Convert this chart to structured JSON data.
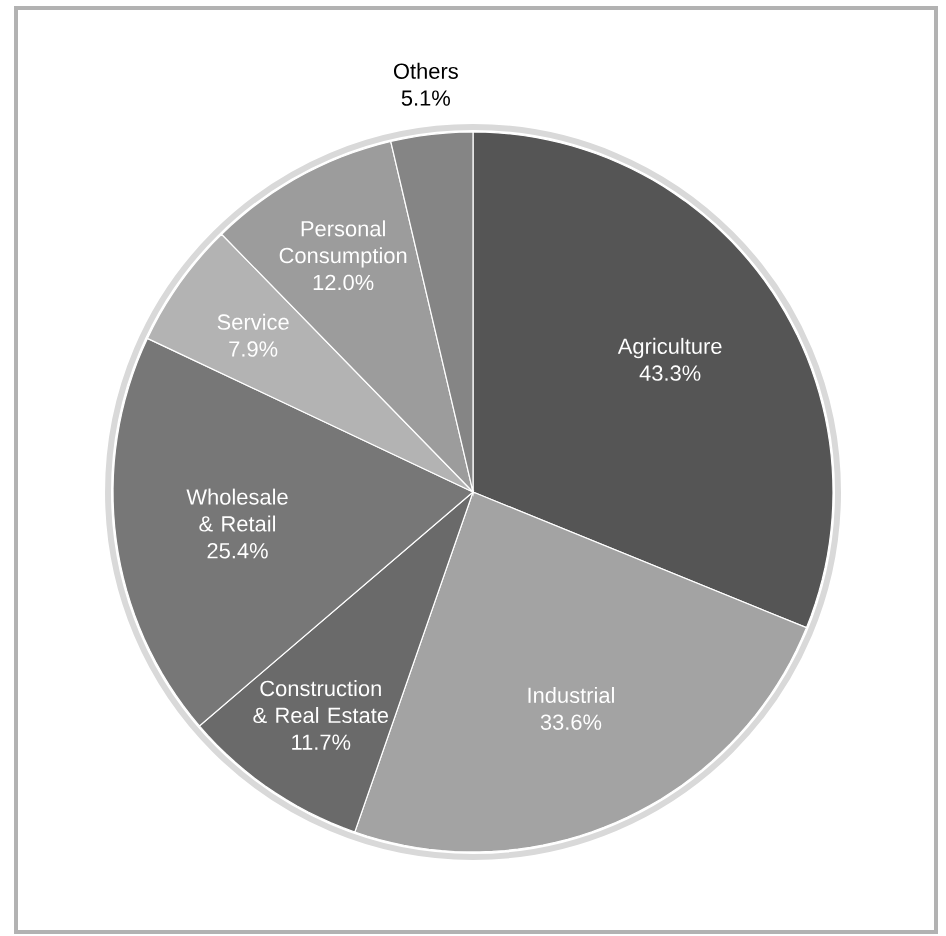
{
  "chart_data": {
    "type": "pie",
    "categories": [
      "Agriculture",
      "Industrial",
      "Construction & Real Estate",
      "Wholesale & Retail",
      "Service",
      "Personal Consumption",
      "Others"
    ],
    "values": [
      43.3,
      33.6,
      11.7,
      25.4,
      7.9,
      12.0,
      5.1
    ],
    "value_labels": [
      "43.3%",
      "33.6%",
      "11.7%",
      "25.4%",
      "7.9%",
      "12.0%",
      "5.1%"
    ],
    "colors": [
      "#555555",
      "#a3a3a3",
      "#6a6a6a",
      "#777777",
      "#b3b3b3",
      "#9c9c9c",
      "#858585"
    ]
  }
}
